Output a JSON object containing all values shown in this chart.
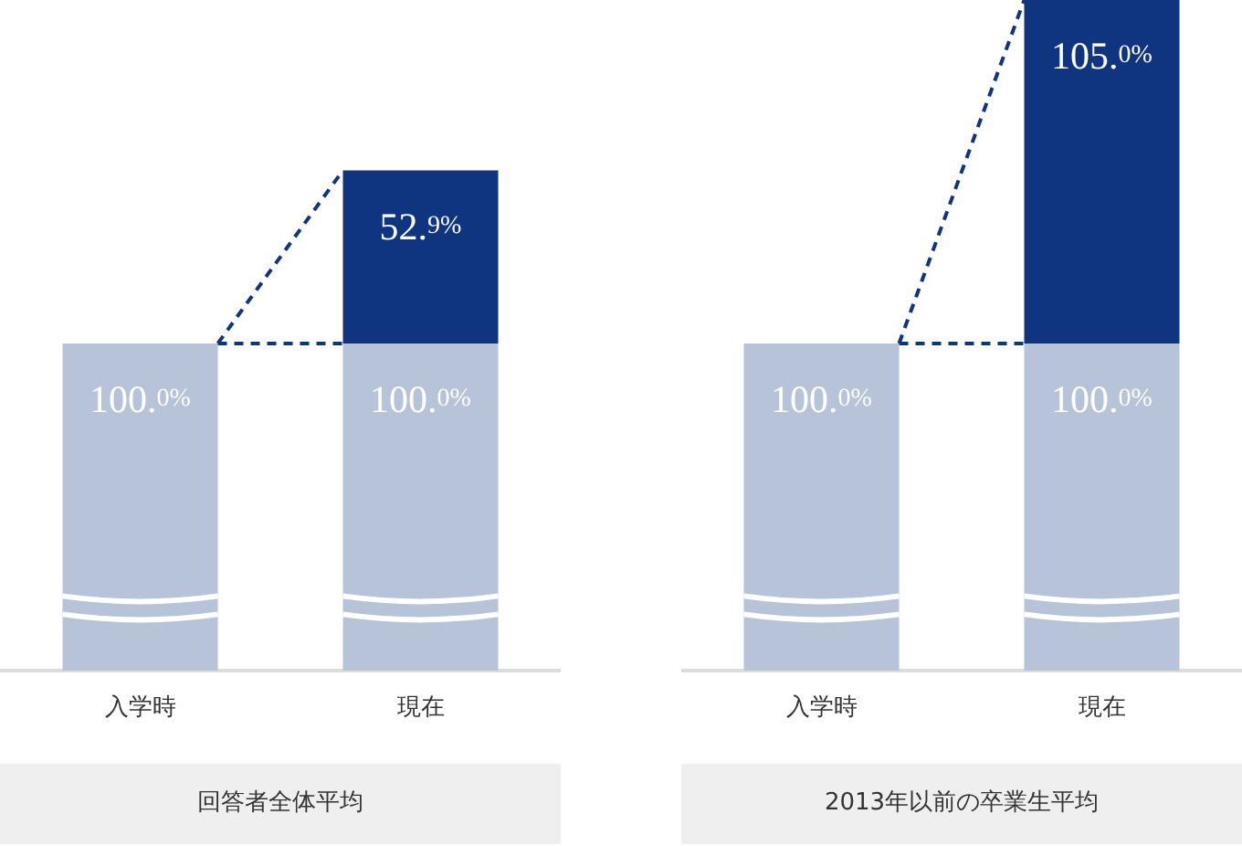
{
  "chart_data": [
    {
      "type": "bar",
      "title": "回答者全体平均",
      "categories": [
        "入学時",
        "現在"
      ],
      "stacked": true,
      "tick_labels": "x",
      "series": [
        {
          "color": "#b7c3d9",
          "values": [
            100,
            100
          ],
          "value_labels": [
            "100.0%",
            "100.0%"
          ]
        },
        {
          "color": "#0f3580",
          "values": [
            null,
            52.9
          ],
          "value_labels": [
            null,
            "52.9%"
          ]
        }
      ]
    },
    {
      "type": "bar",
      "title": "2013年以前の卒業生平均",
      "categories": [
        "入学時",
        "現在"
      ],
      "stacked": true,
      "tick_labels": "x",
      "series": [
        {
          "color": "#b7c3d9",
          "values": [
            100,
            100
          ],
          "value_labels": [
            "100.0%",
            "100.0%"
          ]
        },
        {
          "color": "#0f3580",
          "values": [
            null,
            105.0
          ],
          "value_labels": [
            null,
            "105.0%"
          ]
        }
      ]
    }
  ]
}
